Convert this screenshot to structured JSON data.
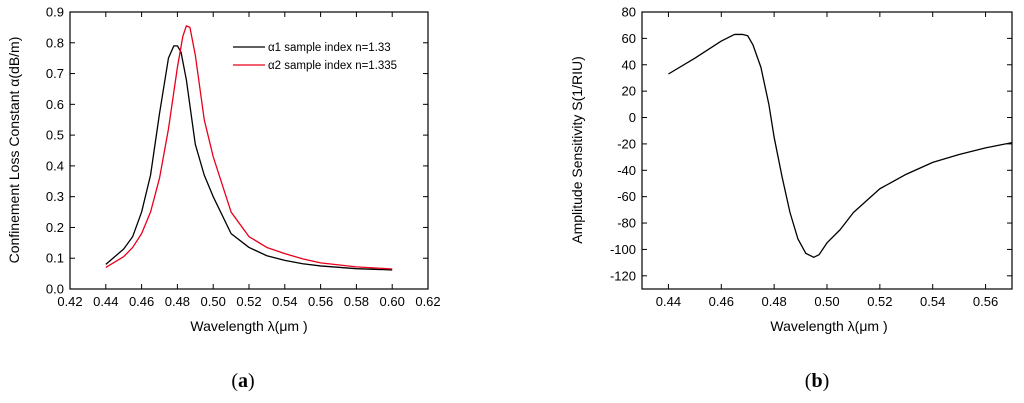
{
  "chart_data": [
    {
      "type": "line",
      "caption": "a",
      "xlabel": "Wavelength   λ(μm )",
      "ylabel": "Confinement  Loss Constant  α(dB/m)",
      "xlim": [
        0.42,
        0.62
      ],
      "ylim": [
        0.0,
        0.9
      ],
      "xticks": [
        "0.42",
        "0.44",
        "0.46",
        "0.48",
        "0.50",
        "0.52",
        "0.54",
        "0.56",
        "0.58",
        "0.60",
        "0.62"
      ],
      "yticks": [
        "0.0",
        "0.1",
        "0.2",
        "0.3",
        "0.4",
        "0.5",
        "0.6",
        "0.7",
        "0.8",
        "0.9"
      ],
      "grid": false,
      "legend_position": "top-right",
      "series": [
        {
          "name": "α1 sample index n=1.33",
          "color": "#000000",
          "x": [
            0.44,
            0.45,
            0.455,
            0.46,
            0.465,
            0.47,
            0.475,
            0.478,
            0.48,
            0.482,
            0.485,
            0.49,
            0.495,
            0.5,
            0.51,
            0.52,
            0.53,
            0.54,
            0.55,
            0.56,
            0.58,
            0.6
          ],
          "y": [
            0.08,
            0.13,
            0.17,
            0.25,
            0.37,
            0.57,
            0.75,
            0.79,
            0.79,
            0.77,
            0.68,
            0.47,
            0.37,
            0.3,
            0.18,
            0.135,
            0.108,
            0.093,
            0.082,
            0.075,
            0.066,
            0.062
          ]
        },
        {
          "name": "α2 sample index n=1.335",
          "color": "#e8001c",
          "x": [
            0.44,
            0.45,
            0.455,
            0.46,
            0.465,
            0.47,
            0.475,
            0.48,
            0.483,
            0.485,
            0.487,
            0.49,
            0.495,
            0.5,
            0.51,
            0.52,
            0.53,
            0.54,
            0.55,
            0.56,
            0.58,
            0.6
          ],
          "y": [
            0.07,
            0.105,
            0.135,
            0.18,
            0.25,
            0.36,
            0.52,
            0.72,
            0.82,
            0.855,
            0.85,
            0.76,
            0.55,
            0.43,
            0.25,
            0.17,
            0.135,
            0.115,
            0.098,
            0.085,
            0.072,
            0.065
          ]
        }
      ]
    },
    {
      "type": "line",
      "caption": "b",
      "xlabel": "Wavelength   λ(μm )",
      "ylabel": "Amplitude    Sensitivity     S(1/RIU)",
      "xlim": [
        0.43,
        0.57
      ],
      "ylim": [
        -130,
        80
      ],
      "xticks": [
        "0.44",
        "0.46",
        "0.48",
        "0.50",
        "0.52",
        "0.54",
        "0.56"
      ],
      "yticks": [
        "80",
        "60",
        "40",
        "20",
        "0",
        "-20",
        "-40",
        "-60",
        "-80",
        "-100",
        "-120"
      ],
      "grid": false,
      "series": [
        {
          "color": "#000000",
          "x": [
            0.44,
            0.45,
            0.46,
            0.465,
            0.468,
            0.47,
            0.472,
            0.475,
            0.478,
            0.48,
            0.483,
            0.486,
            0.489,
            0.492,
            0.495,
            0.497,
            0.5,
            0.505,
            0.51,
            0.52,
            0.53,
            0.54,
            0.55,
            0.56,
            0.57
          ],
          "y": [
            33,
            45,
            58,
            63,
            63,
            62,
            55,
            38,
            10,
            -15,
            -45,
            -72,
            -92,
            -103,
            -106,
            -104,
            -95,
            -85,
            -72,
            -54,
            -43,
            -34,
            -28,
            -23,
            -19
          ]
        }
      ]
    }
  ]
}
